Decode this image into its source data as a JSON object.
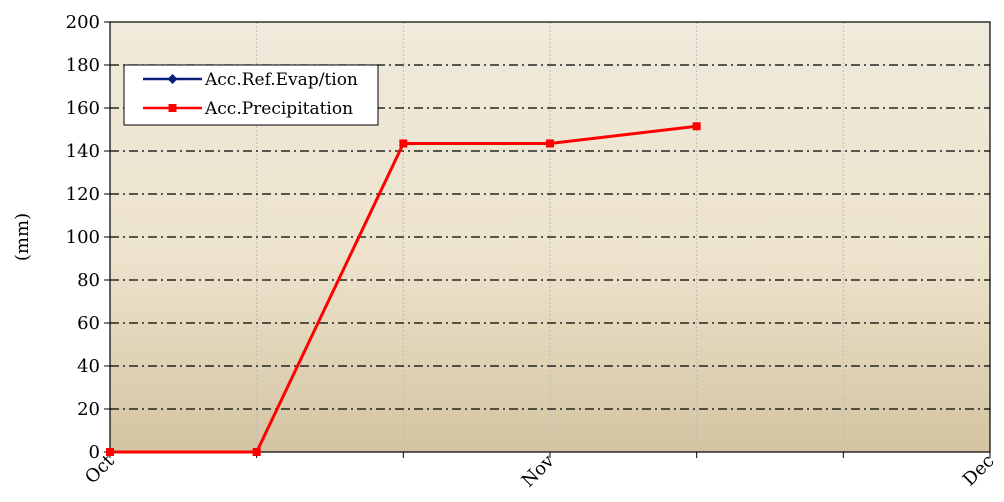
{
  "chart_data": {
    "type": "line",
    "title": "",
    "xlabel": "",
    "ylabel": "(mm)",
    "ylim": [
      0,
      200
    ],
    "yticks": [
      0,
      20,
      40,
      60,
      80,
      100,
      120,
      140,
      160,
      180,
      200
    ],
    "xticks": [
      "Oct",
      "",
      "",
      "Nov",
      "",
      "",
      "Dec"
    ],
    "legend_position": "top-left",
    "grid": "horizontal dash-dot, vertical dotted",
    "series": [
      {
        "name": "Acc.Ref.Evap/tion",
        "color": "#0a1f7a",
        "marker": "diamond",
        "values": []
      },
      {
        "name": "Acc.Precipitation",
        "color": "#ff0000",
        "marker": "square",
        "values": [
          0,
          0,
          143.5,
          143.5,
          151.5
        ]
      }
    ]
  },
  "colors": {
    "plot_top": "#efeadb",
    "plot_bottom": "#d3c4a1",
    "grid_major": "#000000",
    "grid_minor": "#bcbcbc"
  }
}
